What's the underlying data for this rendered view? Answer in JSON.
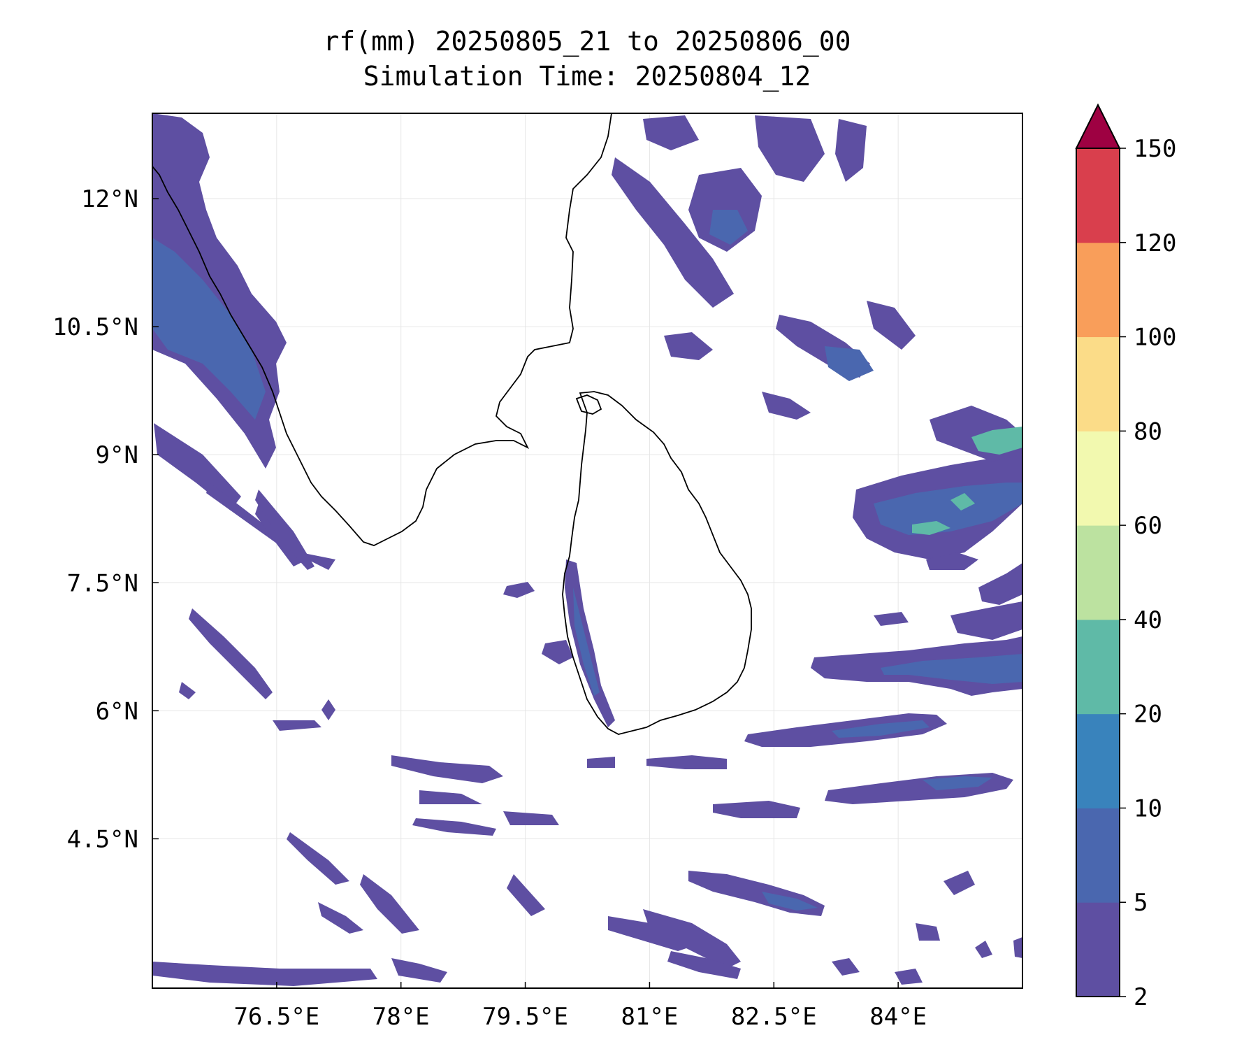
{
  "figure": {
    "title_line1": "rf(mm) 20250805_21 to 20250806_00",
    "title_line2": "Simulation Time: 20250804_12"
  },
  "map": {
    "lon_range": [
      75.0,
      85.5
    ],
    "lat_range": [
      2.75,
      13.0
    ],
    "gridlines": true,
    "lon_ticks": [
      {
        "value": 76.5,
        "label": "76.5°E"
      },
      {
        "value": 78.0,
        "label": "78°E"
      },
      {
        "value": 79.5,
        "label": "79.5°E"
      },
      {
        "value": 81.0,
        "label": "81°E"
      },
      {
        "value": 82.5,
        "label": "82.5°E"
      },
      {
        "value": 84.0,
        "label": "84°E"
      }
    ],
    "lat_ticks": [
      {
        "value": 12.0,
        "label": "12°N"
      },
      {
        "value": 10.5,
        "label": "10.5°N"
      },
      {
        "value": 9.0,
        "label": "9°N"
      },
      {
        "value": 7.5,
        "label": "7.5°N"
      },
      {
        "value": 6.0,
        "label": "6°N"
      },
      {
        "value": 4.5,
        "label": "4.5°N"
      }
    ]
  },
  "colorbar": {
    "levels": [
      {
        "value": 2,
        "label": "2"
      },
      {
        "value": 5,
        "label": "5"
      },
      {
        "value": 10,
        "label": "10"
      },
      {
        "value": 20,
        "label": "20"
      },
      {
        "value": 40,
        "label": "40"
      },
      {
        "value": 60,
        "label": "60"
      },
      {
        "value": 80,
        "label": "80"
      },
      {
        "value": 100,
        "label": "100"
      },
      {
        "value": 120,
        "label": "120"
      },
      {
        "value": 150,
        "label": "150"
      }
    ],
    "colors": [
      "#5e4fa2",
      "#4a67af",
      "#3983bc",
      "#5fbaa7",
      "#bce2a0",
      "#f2f9af",
      "#fbdc88",
      "#f99e5a",
      "#d93f4d"
    ],
    "extend_color": "#9e0142",
    "extend": "max"
  }
}
